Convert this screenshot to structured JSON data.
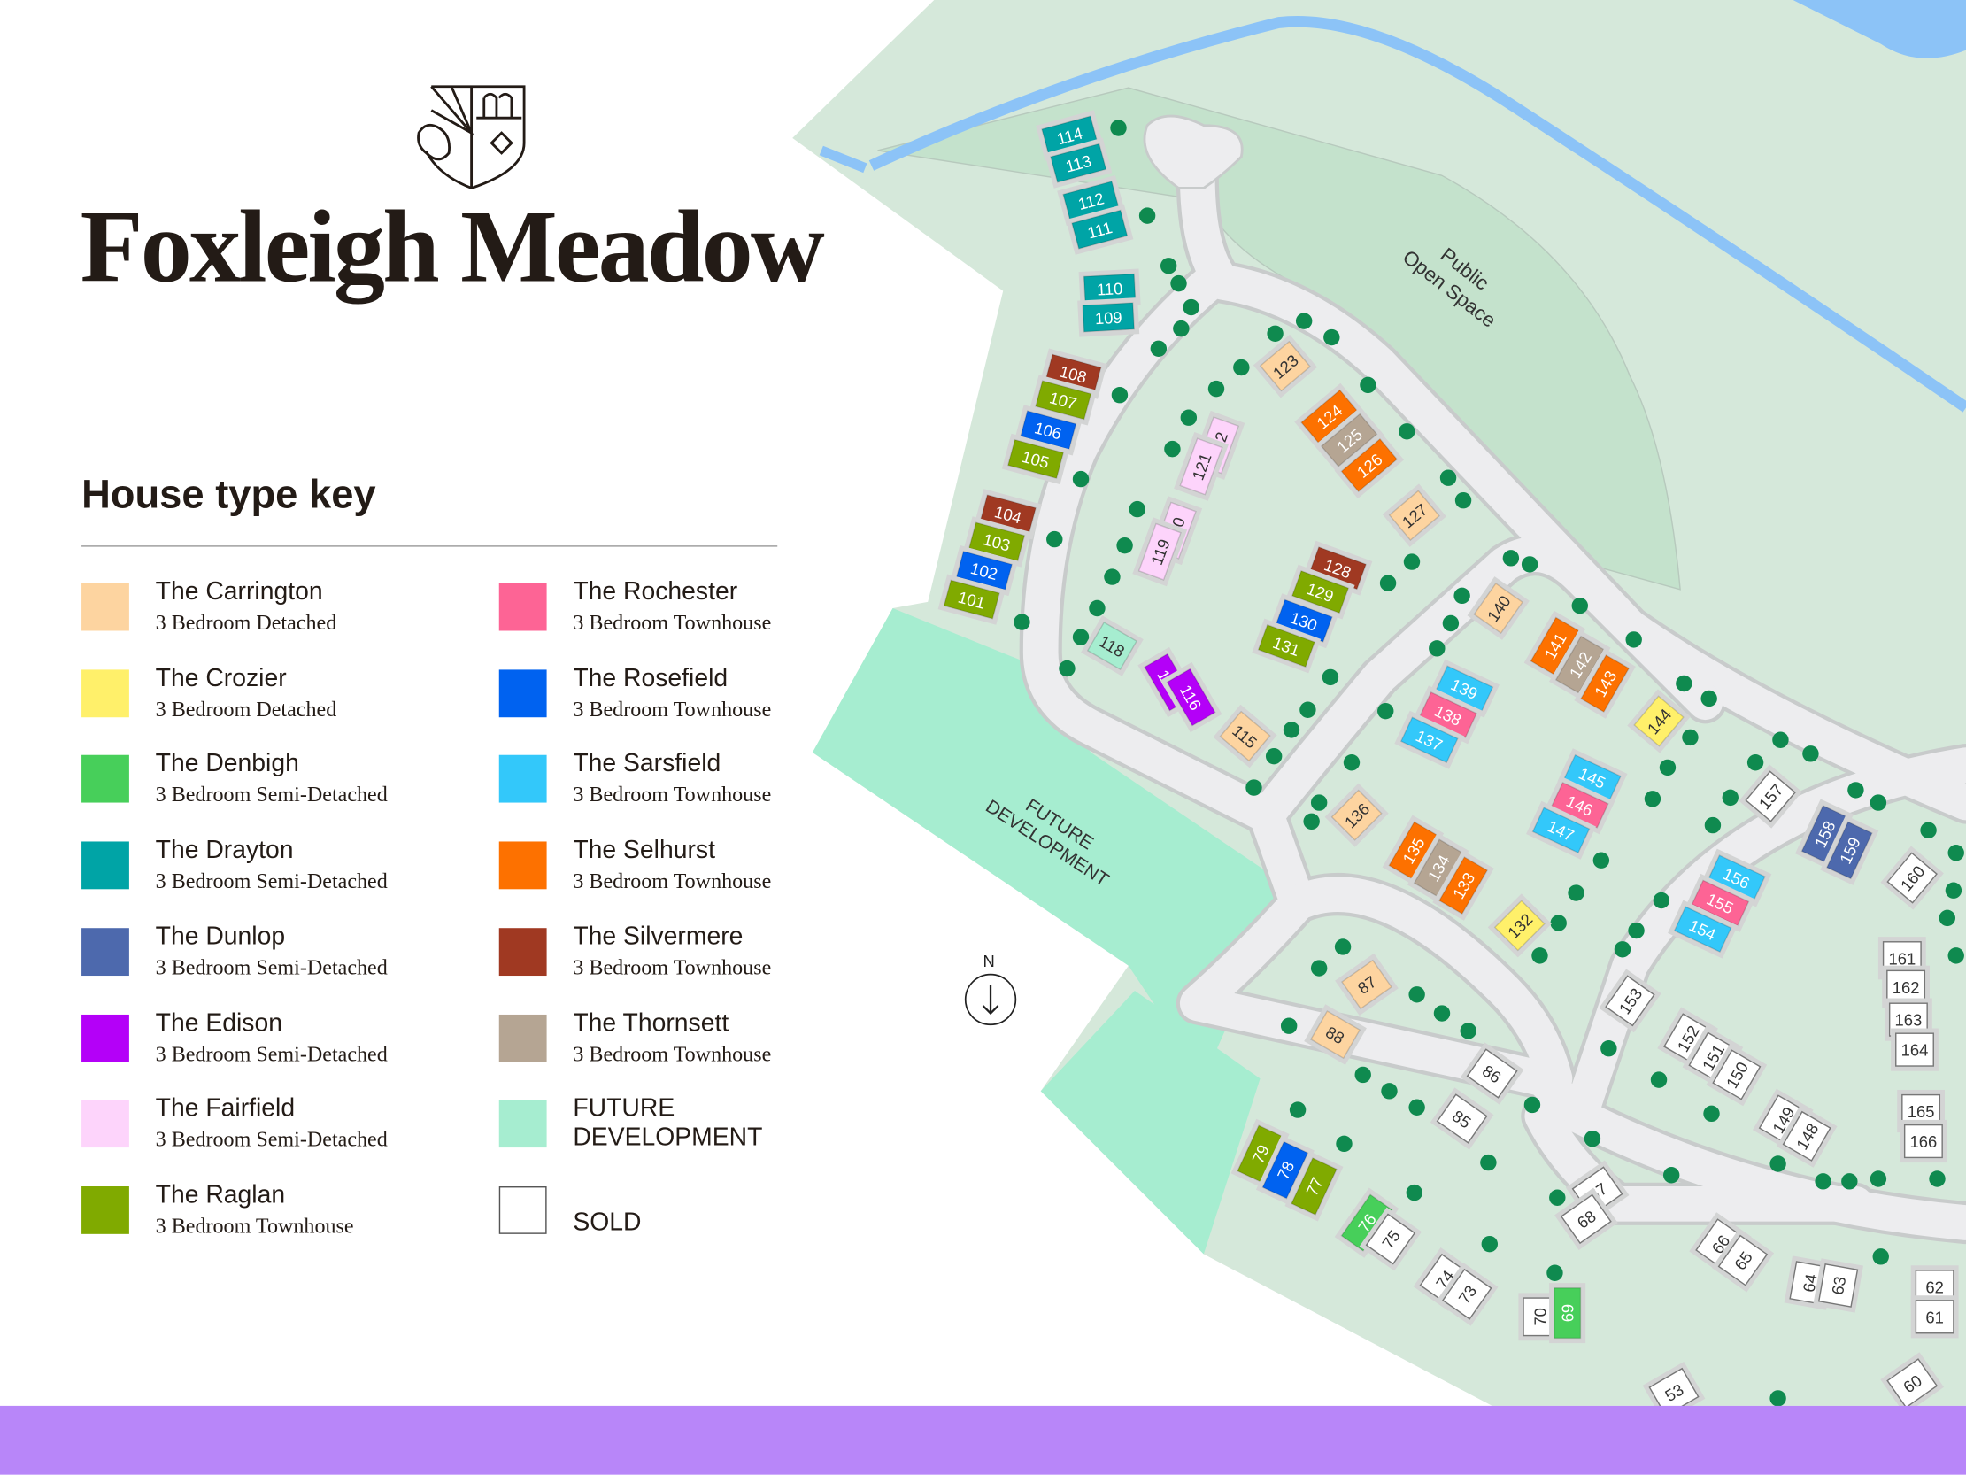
{
  "brand": {
    "name": "Foxleigh Meadow",
    "logo": "crest-icon"
  },
  "key": {
    "title": "House type key",
    "items": [
      {
        "name": "The Carrington",
        "desc": "3 Bedroom Detached",
        "color": "#fdd4a0"
      },
      {
        "name": "The Crozier",
        "desc": "3 Bedroom Detached",
        "color": "#fff06a"
      },
      {
        "name": "The Denbigh",
        "desc": "3 Bedroom Semi-Detached",
        "color": "#47cf5a"
      },
      {
        "name": "The Drayton",
        "desc": "3 Bedroom Semi-Detached",
        "color": "#00a4a6"
      },
      {
        "name": "The Dunlop",
        "desc": "3 Bedroom Semi-Detached",
        "color": "#4d69ad"
      },
      {
        "name": "The Edison",
        "desc": "3 Bedroom Semi-Detached",
        "color": "#b400f8"
      },
      {
        "name": "The Fairfield",
        "desc": "3 Bedroom Semi-Detached",
        "color": "#fdd4fb"
      },
      {
        "name": "The Raglan",
        "desc": "3 Bedroom Townhouse",
        "color": "#80aa00"
      },
      {
        "name": "The Rochester",
        "desc": "3 Bedroom Townhouse",
        "color": "#fd6495"
      },
      {
        "name": "The Rosefield",
        "desc": "3 Bedroom Townhouse",
        "color": "#0062f0"
      },
      {
        "name": "The Sarsfield",
        "desc": "3 Bedroom Townhouse",
        "color": "#33c8fa"
      },
      {
        "name": "The Selhurst",
        "desc": "3 Bedroom Townhouse",
        "color": "#fd7100"
      },
      {
        "name": "The Silvermere",
        "desc": "3 Bedroom Townhouse",
        "color": "#a03922"
      },
      {
        "name": "The Thornsett",
        "desc": "3 Bedroom Townhouse",
        "color": "#b5a593"
      },
      {
        "name": "FUTURE DEVELOPMENT",
        "desc": "",
        "color": "#a6edd0"
      },
      {
        "name": "",
        "desc": "SOLD",
        "color": "#ffffff"
      }
    ]
  },
  "map": {
    "labels": {
      "open_space": [
        "Public",
        "Open Space"
      ],
      "future": [
        "FUTURE",
        "DEVELOPMENT"
      ],
      "north": "N"
    },
    "colors": {
      "ground": "#d5e8da",
      "open_space": "#c4e2cc",
      "road": "#ededef",
      "road_edge": "#c8cbcb",
      "water": "#8cc3f7",
      "tree": "#0f8a4f",
      "future": "#a6edd0",
      "footer": "#b886f9"
    },
    "plots": [
      {
        "n": "114",
        "t": "The Drayton"
      },
      {
        "n": "113",
        "t": "The Drayton"
      },
      {
        "n": "112",
        "t": "The Drayton"
      },
      {
        "n": "111",
        "t": "The Drayton"
      },
      {
        "n": "110",
        "t": "The Drayton"
      },
      {
        "n": "109",
        "t": "The Drayton"
      },
      {
        "n": "108",
        "t": "The Silvermere"
      },
      {
        "n": "107",
        "t": "The Raglan"
      },
      {
        "n": "106",
        "t": "The Rosefield"
      },
      {
        "n": "105",
        "t": "The Raglan"
      },
      {
        "n": "104",
        "t": "The Silvermere"
      },
      {
        "n": "103",
        "t": "The Raglan"
      },
      {
        "n": "102",
        "t": "The Rosefield"
      },
      {
        "n": "101",
        "t": "The Raglan"
      },
      {
        "n": "123",
        "t": "The Carrington"
      },
      {
        "n": "124",
        "t": "The Selhurst"
      },
      {
        "n": "125",
        "t": "The Thornsett"
      },
      {
        "n": "126",
        "t": "The Selhurst"
      },
      {
        "n": "127",
        "t": "The Carrington"
      },
      {
        "n": "122",
        "t": "The Fairfield"
      },
      {
        "n": "121",
        "t": "The Fairfield"
      },
      {
        "n": "120",
        "t": "The Fairfield"
      },
      {
        "n": "119",
        "t": "The Fairfield"
      },
      {
        "n": "128",
        "t": "The Silvermere"
      },
      {
        "n": "129",
        "t": "The Raglan"
      },
      {
        "n": "130",
        "t": "The Rosefield"
      },
      {
        "n": "131",
        "t": "The Raglan"
      },
      {
        "n": "118",
        "t": "FUTURE DEVELOPMENT"
      },
      {
        "n": "117",
        "t": "The Edison"
      },
      {
        "n": "116",
        "t": "The Edison"
      },
      {
        "n": "115",
        "t": "The Carrington"
      },
      {
        "n": "140",
        "t": "The Carrington"
      },
      {
        "n": "141",
        "t": "The Selhurst"
      },
      {
        "n": "142",
        "t": "The Thornsett"
      },
      {
        "n": "143",
        "t": "The Selhurst"
      },
      {
        "n": "139",
        "t": "The Sarsfield"
      },
      {
        "n": "138",
        "t": "The Rochester"
      },
      {
        "n": "137",
        "t": "The Sarsfield"
      },
      {
        "n": "144",
        "t": "The Crozier"
      },
      {
        "n": "145",
        "t": "The Sarsfield"
      },
      {
        "n": "146",
        "t": "The Rochester"
      },
      {
        "n": "147",
        "t": "The Sarsfield"
      },
      {
        "n": "136",
        "t": "The Carrington"
      },
      {
        "n": "135",
        "t": "The Selhurst"
      },
      {
        "n": "134",
        "t": "The Thornsett"
      },
      {
        "n": "133",
        "t": "The Selhurst"
      },
      {
        "n": "132",
        "t": "The Crozier"
      },
      {
        "n": "157",
        "t": "SOLD"
      },
      {
        "n": "158",
        "t": "The Dunlop"
      },
      {
        "n": "159",
        "t": "The Dunlop"
      },
      {
        "n": "160",
        "t": "SOLD"
      },
      {
        "n": "156",
        "t": "The Sarsfield"
      },
      {
        "n": "155",
        "t": "The Rochester"
      },
      {
        "n": "154",
        "t": "The Sarsfield"
      },
      {
        "n": "161",
        "t": "SOLD"
      },
      {
        "n": "162",
        "t": "SOLD"
      },
      {
        "n": "163",
        "t": "SOLD"
      },
      {
        "n": "164",
        "t": "SOLD"
      },
      {
        "n": "165",
        "t": "SOLD"
      },
      {
        "n": "166",
        "t": "SOLD"
      },
      {
        "n": "153",
        "t": "SOLD"
      },
      {
        "n": "152",
        "t": "SOLD"
      },
      {
        "n": "151",
        "t": "SOLD"
      },
      {
        "n": "150",
        "t": "SOLD"
      },
      {
        "n": "149",
        "t": "SOLD"
      },
      {
        "n": "148",
        "t": "SOLD"
      },
      {
        "n": "87",
        "t": "The Carrington"
      },
      {
        "n": "88",
        "t": "The Carrington"
      },
      {
        "n": "86",
        "t": "SOLD"
      },
      {
        "n": "85",
        "t": "SOLD"
      },
      {
        "n": "79",
        "t": "The Raglan"
      },
      {
        "n": "78",
        "t": "The Rosefield"
      },
      {
        "n": "77",
        "t": "The Raglan"
      },
      {
        "n": "76",
        "t": "The Denbigh"
      },
      {
        "n": "75",
        "t": "SOLD"
      },
      {
        "n": "74",
        "t": "SOLD"
      },
      {
        "n": "73",
        "t": "SOLD"
      },
      {
        "n": "70",
        "t": "SOLD"
      },
      {
        "n": "69",
        "t": "The Denbigh"
      },
      {
        "n": "67",
        "t": "SOLD"
      },
      {
        "n": "68",
        "t": "SOLD"
      },
      {
        "n": "66",
        "t": "SOLD"
      },
      {
        "n": "65",
        "t": "SOLD"
      },
      {
        "n": "64",
        "t": "SOLD"
      },
      {
        "n": "63",
        "t": "SOLD"
      },
      {
        "n": "62",
        "t": "SOLD"
      },
      {
        "n": "61",
        "t": "SOLD"
      },
      {
        "n": "60",
        "t": "SOLD"
      },
      {
        "n": "53",
        "t": "SOLD"
      }
    ]
  }
}
